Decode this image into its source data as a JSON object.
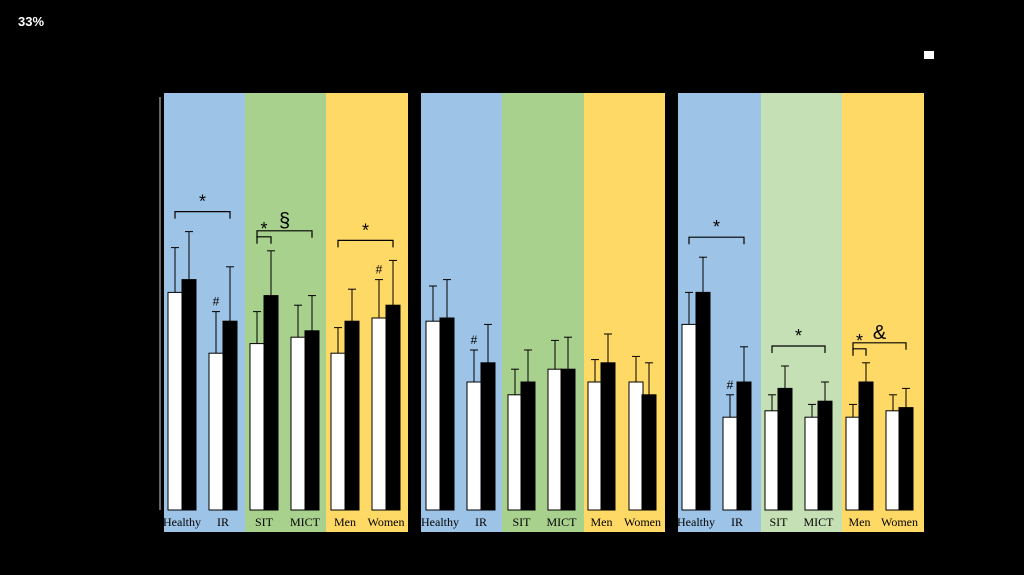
{
  "zoom": "33%",
  "colors": {
    "background": "#000000",
    "blue": "#9DC3E6",
    "green": "#A9D18E",
    "light_green": "#C5E0B4",
    "yellow": "#FFD966",
    "bar_white": "#FFFFFF",
    "bar_black": "#000000"
  },
  "chart_data": [
    {
      "type": "bar",
      "title": "",
      "categories": [
        "Healthy",
        "IR",
        "SIT",
        "MICT",
        "Men",
        "Women"
      ],
      "series": [
        {
          "values": [
            68,
            49,
            52,
            54,
            49,
            60
          ],
          "errors": [
            14,
            13,
            10,
            10,
            8,
            12
          ]
        },
        {
          "values": [
            72,
            59,
            67,
            56,
            59,
            64
          ],
          "errors": [
            15,
            17,
            14,
            11,
            10,
            14
          ]
        }
      ],
      "ylim": [
        0,
        100
      ],
      "annotations": [
        {
          "symbol": "*",
          "between": [
            "Healthy",
            "IR"
          ]
        },
        {
          "symbol": "#",
          "over": "IR"
        },
        {
          "symbol": "§",
          "between": [
            "SIT",
            "MICT"
          ]
        },
        {
          "symbol": "*",
          "within": "SIT"
        },
        {
          "symbol": "*",
          "between": [
            "Men",
            "Women"
          ]
        },
        {
          "symbol": "#",
          "over": "Women"
        }
      ]
    },
    {
      "type": "bar",
      "title": "",
      "categories": [
        "Healthy",
        "IR",
        "SIT",
        "MICT",
        "Men",
        "Women"
      ],
      "series": [
        {
          "values": [
            59,
            40,
            36,
            44,
            40,
            40
          ],
          "errors": [
            11,
            10,
            8,
            9,
            7,
            8
          ]
        },
        {
          "values": [
            60,
            46,
            40,
            44,
            46,
            36
          ],
          "errors": [
            12,
            12,
            10,
            10,
            9,
            10
          ]
        }
      ],
      "ylim": [
        0,
        100
      ],
      "annotations": [
        {
          "symbol": "#",
          "over": "IR"
        }
      ]
    },
    {
      "type": "bar",
      "title": "",
      "categories": [
        "Healthy",
        "IR",
        "SIT",
        "MICT",
        "Men",
        "Women"
      ],
      "series": [
        {
          "values": [
            58,
            29,
            31,
            29,
            29,
            31
          ],
          "errors": [
            10,
            7,
            5,
            4,
            4,
            5
          ]
        },
        {
          "values": [
            68,
            40,
            38,
            34,
            40,
            32
          ],
          "errors": [
            11,
            11,
            7,
            6,
            6,
            6
          ]
        }
      ],
      "ylim": [
        0,
        100
      ],
      "annotations": [
        {
          "symbol": "*",
          "between": [
            "Healthy",
            "IR"
          ]
        },
        {
          "symbol": "#",
          "over": "IR"
        },
        {
          "symbol": "*",
          "between": [
            "SIT",
            "MICT"
          ]
        },
        {
          "symbol": "*",
          "within": "Men"
        },
        {
          "symbol": "&",
          "between": [
            "Men",
            "Women"
          ]
        }
      ]
    }
  ]
}
